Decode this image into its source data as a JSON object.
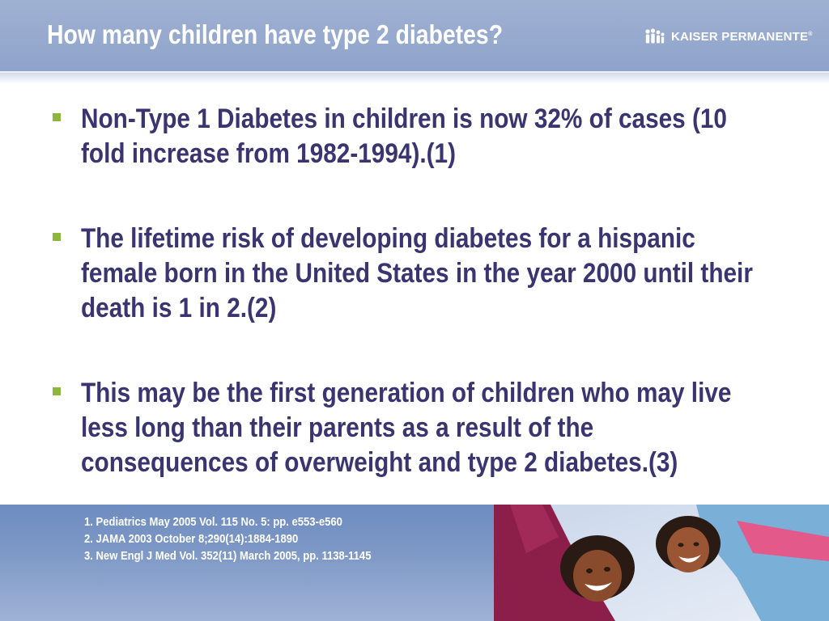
{
  "slide": {
    "title": "How many children have type 2 diabetes?",
    "logo": {
      "icon": "kaiser-people-icon",
      "text": "KAISER PERMANENTE",
      "mark": "®"
    },
    "bullets": [
      {
        "text": "Non-Type 1 Diabetes in children is now 32% of cases (10 fold increase from 1982-1994).(1)"
      },
      {
        "text": "The lifetime risk of developing diabetes for a hispanic female born in the United States in the year 2000 until their death is 1 in 2.(2)"
      },
      {
        "text": "This may be the first generation of children who may live less long than their parents as a result of the consequences of overweight and type 2 diabetes.(3)"
      }
    ],
    "references": [
      "1. Pediatrics May 2005 Vol. 115 No. 5: pp. e553-e560",
      "2. JAMA 2003 October 8;290(14):1884-1890",
      "3. New Engl J Med Vol. 352(11) March 2005, pp. 1138-1145"
    ],
    "colors": {
      "header": "#9fb1d3",
      "bullet_text": "#3a3570",
      "bullet_marker": "#8cb63c",
      "footer": "#7d98c6"
    }
  }
}
